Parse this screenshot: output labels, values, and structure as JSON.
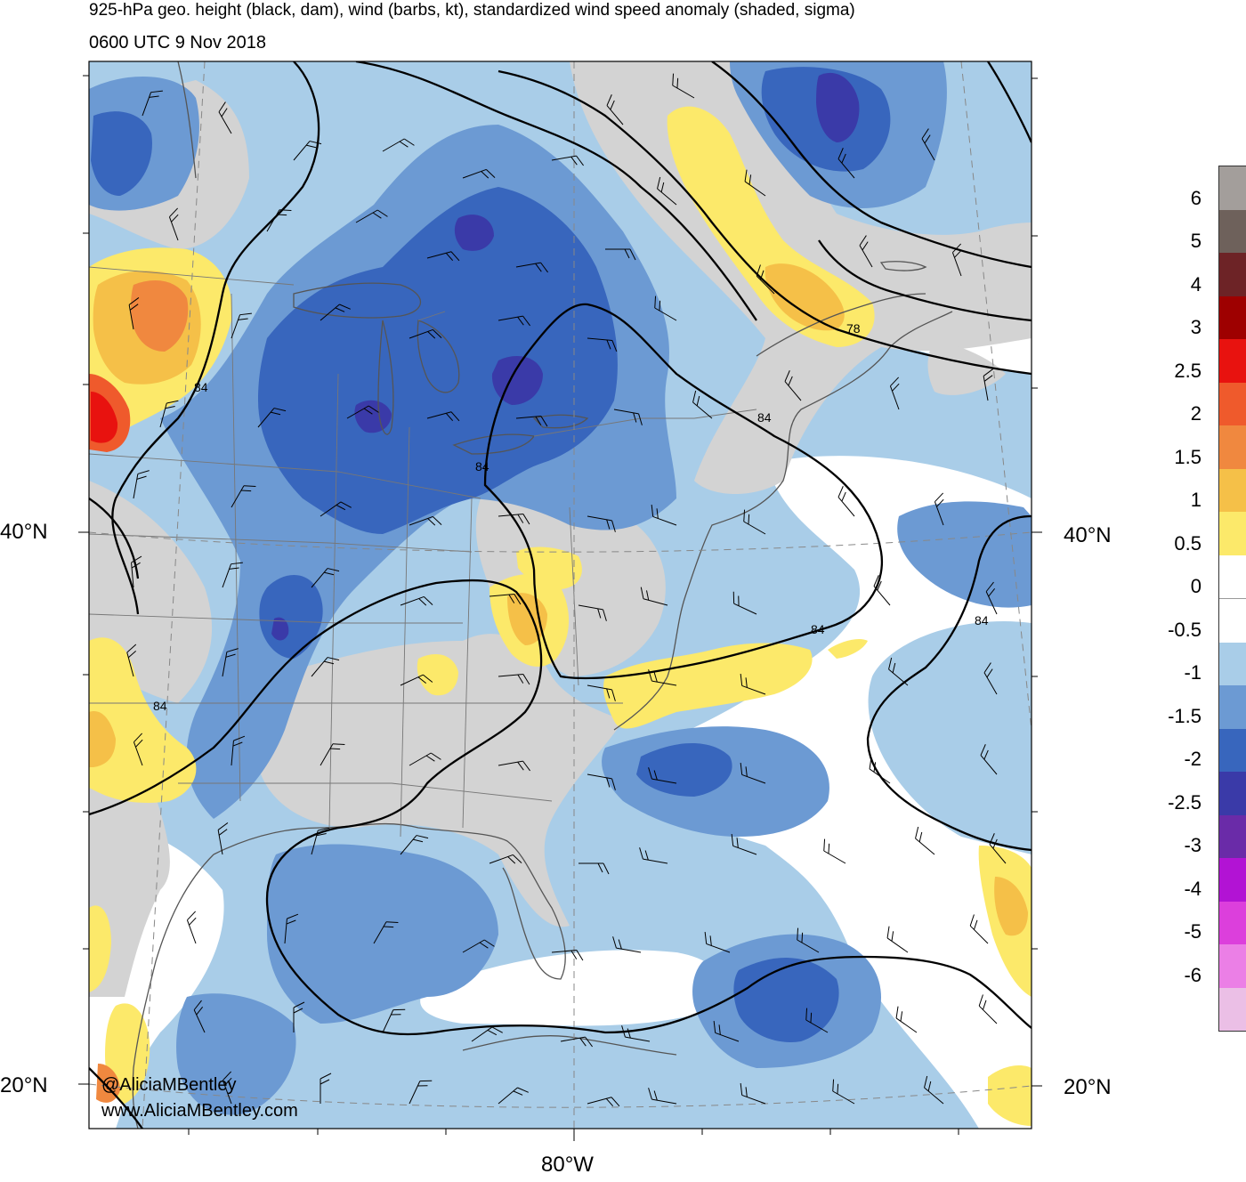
{
  "header": {
    "title": "925-hPa geo. height (black, dam), wind (barbs, kt), standardized wind speed anomaly (shaded, sigma)",
    "valid_time": "0600 UTC 9 Nov 2018"
  },
  "axes": {
    "lat_labels": [
      "40°N",
      "20°N"
    ],
    "lon_labels": [
      "80°W"
    ]
  },
  "contour_labels": [
    "84",
    "84",
    "84",
    "84",
    "84",
    "84",
    "78"
  ],
  "credits": {
    "twitter": "@AliciaMBentley",
    "website": "www.AliciaMBentley.com"
  },
  "colorbar": {
    "labels": [
      "6",
      "5",
      "4",
      "3",
      "2.5",
      "2",
      "1.5",
      "1",
      "0.5",
      "0",
      "-0.5",
      "-1",
      "-1.5",
      "-2",
      "-2.5",
      "-3",
      "-4",
      "-5",
      "-6"
    ],
    "colors": [
      "#a39e9b",
      "#6e615b",
      "#6d2326",
      "#9e0000",
      "#e8120f",
      "#ef5a2c",
      "#f0883f",
      "#f5c048",
      "#fce96a",
      "#ffffff",
      "#ffffff",
      "#a9cde8",
      "#6c9ad3",
      "#3866bd",
      "#3a3aa8",
      "#6a2ba8",
      "#b213d4",
      "#dc3fdc",
      "#eb7fe6",
      "#ebbfe6"
    ]
  },
  "map_colors": {
    "land": "#d3d3d3",
    "ocean": "#ffffff",
    "anom_neg05": "#a9cde8",
    "anom_neg10": "#6c9ad3",
    "anom_neg15": "#3866bd",
    "anom_neg20": "#3a3aa8",
    "anom_neg25": "#6a2ba8",
    "anom_pos05": "#fce96a",
    "anom_pos10": "#f5c048",
    "anom_pos15": "#f0883f",
    "anom_pos20": "#ef5a2c",
    "anom_pos25": "#e8120f"
  }
}
